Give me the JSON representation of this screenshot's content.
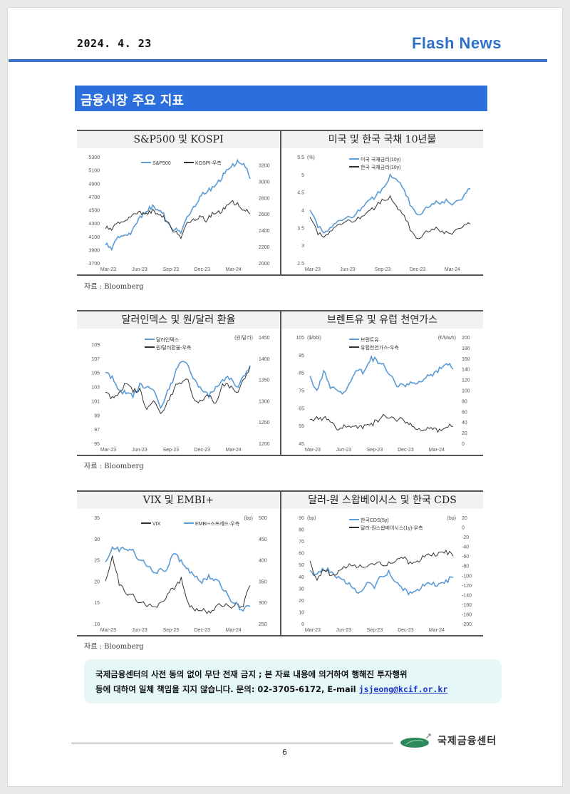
{
  "header": {
    "date": "2024. 4. 23",
    "brand": "Flash News"
  },
  "section_title": "금융시장 주요 지표",
  "sources": [
    "자료 : Bloomberg",
    "자료 : Bloomberg",
    "자료 : Bloomberg"
  ],
  "notice": {
    "line1": "국제금융센터의 사전 동의 없이 무단 전재 금지 ; 본 자료 내용에 의거하여 행해진 투자행위",
    "line2": "등에 대하여 일체 책임을 지지 않습니다. 문의: 02-3705-6172, E-mail ",
    "email": "jsjeong@kcif.or.kr"
  },
  "footer": {
    "page_number": "6",
    "logo_text": "국제금융센터"
  },
  "colors": {
    "accent": "#2a6fdc",
    "series_blue": "#5b9bd5",
    "series_dark": "#333333",
    "header_rule": "#3a74c8"
  },
  "chart_data": [
    {
      "type": "line",
      "title": "S&P500 및 KOSPI",
      "x": [
        "Mar-23",
        "Jun-23",
        "Sep-23",
        "Dec-23",
        "Mar-24"
      ],
      "y_left": {
        "ticks": [
          3700,
          3900,
          4100,
          4300,
          4500,
          4700,
          4900,
          5100,
          5300
        ],
        "ylim": [
          3700,
          5300
        ]
      },
      "y_right": {
        "ticks": [
          2000,
          2200,
          2400,
          2600,
          2800,
          3000,
          3200
        ],
        "ylim": [
          2000,
          3300
        ]
      },
      "series": [
        {
          "name": "S&P500",
          "axis": "left",
          "color": "#5b9bd5",
          "values": [
            3970,
            3900,
            4100,
            4120,
            4130,
            4300,
            4450,
            4550,
            4500,
            4450,
            4300,
            4200,
            4150,
            4400,
            4550,
            4700,
            4750,
            4850,
            4950,
            5050,
            5150,
            5250,
            5200,
            4970
          ]
        },
        {
          "name": "KOSPI-우측",
          "axis": "right",
          "color": "#333333",
          "values": [
            2420,
            2400,
            2500,
            2510,
            2560,
            2600,
            2620,
            2640,
            2600,
            2560,
            2500,
            2380,
            2300,
            2500,
            2540,
            2580,
            2500,
            2620,
            2640,
            2660,
            2750,
            2740,
            2650,
            2600
          ]
        }
      ],
      "legend": [
        "S&P500",
        "KOSPI-우측"
      ]
    },
    {
      "type": "line",
      "title": "미국 및 한국 국채 10년물",
      "x": [
        "Mar-23",
        "Jun-23",
        "Sep-23",
        "Dec-23",
        "Mar-24"
      ],
      "y_left": {
        "label": "(%)",
        "ticks": [
          2.5,
          3.0,
          3.5,
          4.0,
          4.5,
          5.0,
          5.5
        ],
        "ylim": [
          2.5,
          5.5
        ]
      },
      "series": [
        {
          "name": "미국 국채금리(10y)",
          "color": "#5b9bd5",
          "values": [
            4.0,
            3.5,
            3.4,
            3.6,
            3.7,
            3.8,
            4.0,
            4.2,
            4.3,
            4.6,
            5.0,
            4.8,
            4.4,
            4.0,
            3.9,
            4.1,
            4.2,
            4.3,
            4.2,
            4.3,
            4.6
          ]
        },
        {
          "name": "한국 국채금리(10y)",
          "color": "#333333",
          "values": [
            3.8,
            3.3,
            3.3,
            3.5,
            3.6,
            3.7,
            3.8,
            3.9,
            4.0,
            4.3,
            4.4,
            4.0,
            3.7,
            3.3,
            3.25,
            3.4,
            3.45,
            3.4,
            3.4,
            3.5,
            3.6
          ]
        }
      ],
      "legend": [
        "미국 국채금리(10y)",
        "한국 국채금리(10y)"
      ]
    },
    {
      "type": "line",
      "title": "달러인덱스 및 원/달러 환율",
      "x": [
        "Mar-23",
        "Jun-23",
        "Sep-23",
        "Dec-23",
        "Mar-24"
      ],
      "y_left": {
        "ticks": [
          95,
          97,
          99,
          101,
          103,
          105,
          107,
          109
        ],
        "ylim": [
          95,
          110
        ]
      },
      "y_right": {
        "label": "(원/달러)",
        "ticks": [
          1200,
          1250,
          1300,
          1350,
          1400,
          1450
        ],
        "ylim": [
          1200,
          1450
        ]
      },
      "series": [
        {
          "name": "달러인덱스",
          "axis": "left",
          "color": "#5b9bd5",
          "values": [
            105,
            104.5,
            102.5,
            102,
            101.5,
            103.5,
            103,
            102.5,
            100,
            102.5,
            104.5,
            106.5,
            106,
            104,
            102.5,
            101.5,
            103,
            104,
            104,
            103,
            104.5,
            106
          ]
        },
        {
          "name": "원/달러환율-우측",
          "axis": "right",
          "color": "#333333",
          "values": [
            1320,
            1310,
            1320,
            1340,
            1320,
            1330,
            1280,
            1300,
            1270,
            1300,
            1330,
            1340,
            1350,
            1300,
            1300,
            1310,
            1295,
            1340,
            1330,
            1320,
            1350,
            1380
          ]
        }
      ],
      "legend": [
        "달러인덱스",
        "원/달러환율-우측"
      ]
    },
    {
      "type": "line",
      "title": "브렌트유 및 유럽 천연가스",
      "x": [
        "Mar-23",
        "Jun-23",
        "Sep-23",
        "Dec-23",
        "Mar-24"
      ],
      "y_left": {
        "label": "($/bbl)",
        "ticks": [
          45,
          55,
          65,
          75,
          85,
          95,
          105
        ],
        "ylim": [
          45,
          105
        ]
      },
      "y_right": {
        "label": "(€/Mwh)",
        "ticks": [
          0,
          20,
          40,
          60,
          80,
          100,
          120,
          140,
          160,
          180,
          200
        ],
        "ylim": [
          0,
          200
        ]
      },
      "series": [
        {
          "name": "브렌트유",
          "axis": "left",
          "color": "#5b9bd5",
          "values": [
            83,
            75,
            86,
            76,
            75,
            74,
            80,
            86,
            86,
            94,
            90,
            88,
            83,
            77,
            77,
            79,
            80,
            82,
            83,
            88,
            90,
            87
          ]
        },
        {
          "name": "유럽천연가스-우측",
          "axis": "right",
          "color": "#333333",
          "values": [
            45,
            50,
            48,
            40,
            25,
            35,
            30,
            28,
            35,
            38,
            40,
            52,
            50,
            45,
            38,
            32,
            28,
            25,
            26,
            27,
            30,
            32
          ]
        }
      ],
      "legend": [
        "브렌트유",
        "유럽천연가스-우측"
      ]
    },
    {
      "type": "line",
      "title": "VIX 및 EMBI+",
      "x": [
        "Mar-23",
        "Jun-23",
        "Sep-23",
        "Dec-23",
        "Mar-24"
      ],
      "y_left": {
        "ticks": [
          10,
          15,
          20,
          25,
          30,
          35
        ],
        "ylim": [
          10,
          35
        ]
      },
      "y_right": {
        "label": "(bp)",
        "ticks": [
          250,
          300,
          350,
          400,
          450,
          500
        ],
        "ylim": [
          250,
          500
        ]
      },
      "series": [
        {
          "name": "VIX",
          "axis": "left",
          "color": "#333333",
          "values": [
            20,
            26,
            19,
            17,
            17,
            15,
            14,
            14,
            15,
            17,
            18,
            21,
            15,
            13,
            13,
            13,
            14,
            14,
            14,
            15,
            14,
            19
          ]
        },
        {
          "name": "EMBI+스프레드-우측",
          "axis": "right",
          "color": "#5b9bd5",
          "values": [
            395,
            430,
            420,
            425,
            425,
            400,
            385,
            370,
            380,
            380,
            415,
            400,
            380,
            360,
            345,
            365,
            355,
            330,
            310,
            300,
            280,
            290
          ]
        }
      ],
      "legend": [
        "VIX",
        "EMBI+스프레드-우측"
      ]
    },
    {
      "type": "line",
      "title": "달러-원 스왑베이시스 및 한국 CDS",
      "x": [
        "Mar-23",
        "Jun-23",
        "Sep-23",
        "Dec-23",
        "Mar-24"
      ],
      "y_left": {
        "label": "(bp)",
        "ticks": [
          0,
          10,
          20,
          30,
          40,
          50,
          60,
          70,
          80,
          90
        ],
        "ylim": [
          0,
          90
        ]
      },
      "y_right": {
        "label": "(bp)",
        "ticks": [
          -200,
          -180,
          -160,
          -140,
          -120,
          -100,
          -80,
          -60,
          -40,
          -20,
          0,
          20
        ],
        "ylim": [
          -200,
          20
        ]
      },
      "series": [
        {
          "name": "한국CDS(5y)",
          "axis": "left",
          "color": "#5b9bd5",
          "values": [
            45,
            42,
            45,
            44,
            40,
            34,
            30,
            27,
            35,
            30,
            40,
            45,
            35,
            28,
            27,
            29,
            32,
            33,
            34,
            37,
            39
          ]
        },
        {
          "name": "달러-원스왑베이시스(1y)-우측",
          "axis": "right",
          "color": "#333333",
          "values": [
            -70,
            -110,
            -90,
            -100,
            -90,
            -85,
            -80,
            -78,
            -82,
            -78,
            -78,
            -72,
            -70,
            -65,
            -72,
            -70,
            -62,
            -60,
            -52,
            -48,
            -60
          ]
        }
      ],
      "legend": [
        "한국CDS(5y)",
        "달러-원스왑베이시스(1y)-우측"
      ]
    }
  ]
}
